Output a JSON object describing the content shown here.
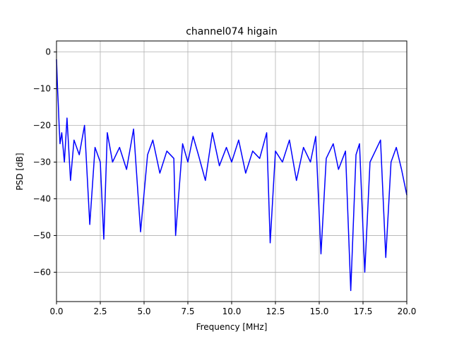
{
  "chart_data": {
    "type": "line",
    "title": "channel074 higain",
    "xlabel": "Frequency [MHz]",
    "ylabel": "PSD [dB]",
    "xlim": [
      0,
      20
    ],
    "ylim": [
      -68,
      3
    ],
    "xticks": [
      0,
      2.5,
      5,
      7.5,
      10,
      12.5,
      15,
      17.5,
      20
    ],
    "xtick_labels": [
      "0.0",
      "2.5",
      "5.0",
      "7.5",
      "10.0",
      "12.5",
      "15.0",
      "17.5",
      "20.0"
    ],
    "yticks": [
      0,
      -10,
      -20,
      -30,
      -40,
      -50,
      -60
    ],
    "ytick_labels": [
      "0",
      "−10",
      "−20",
      "−30",
      "−40",
      "−50",
      "−60"
    ],
    "grid": true,
    "line_color": "#0000ff",
    "series": [
      {
        "x": [
          0.0,
          0.03,
          0.06,
          0.1,
          0.15,
          0.2,
          0.3,
          0.45,
          0.6,
          0.8,
          1.0,
          1.3,
          1.6,
          1.9,
          2.2,
          2.5,
          2.7,
          2.9,
          3.2,
          3.6,
          4.0,
          4.4,
          4.8,
          5.2,
          5.5,
          5.9,
          6.3,
          6.7,
          6.8,
          7.2,
          7.5,
          7.8,
          8.1,
          8.5,
          8.9,
          9.3,
          9.7,
          10.0,
          10.4,
          10.8,
          11.2,
          11.6,
          12.0,
          12.2,
          12.5,
          12.9,
          13.3,
          13.7,
          14.1,
          14.5,
          14.8,
          15.1,
          15.4,
          15.8,
          16.1,
          16.5,
          16.8,
          17.1,
          17.3,
          17.6,
          17.9,
          18.2,
          18.5,
          18.8,
          19.1,
          19.4,
          19.7,
          20.0
        ],
        "y": [
          -2,
          -6,
          -10,
          -14,
          -20,
          -25,
          -22,
          -30,
          -18,
          -35,
          -24,
          -28,
          -20,
          -47,
          -26,
          -30,
          -51,
          -22,
          -30,
          -26,
          -32,
          -21,
          -49,
          -28,
          -24,
          -33,
          -27,
          -29,
          -50,
          -25,
          -30,
          -23,
          -28,
          -35,
          -22,
          -31,
          -26,
          -30,
          -24,
          -33,
          -27,
          -29,
          -22,
          -52,
          -27,
          -30,
          -24,
          -35,
          -26,
          -30,
          -23,
          -55,
          -29,
          -25,
          -32,
          -27,
          -65,
          -28,
          -25,
          -60,
          -30,
          -27,
          -24,
          -56,
          -30,
          -26,
          -32,
          -39
        ]
      }
    ]
  }
}
